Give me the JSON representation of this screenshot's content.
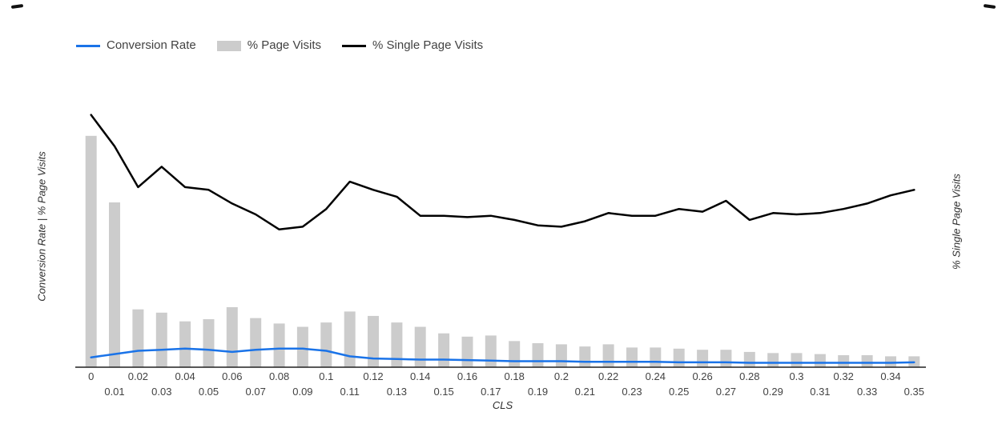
{
  "chart_data": {
    "type": "combo",
    "title": "",
    "xlabel": "CLS",
    "ylabel_left": "Conversion Rate | % Page Visits",
    "ylabel_right": "% Single Page Visits",
    "grid": false,
    "legend_position": "top-left",
    "ylim_left": [
      0,
      25
    ],
    "ylim_right": [
      0,
      100
    ],
    "axis_color": "#212121",
    "tick_label_color": "#424242",
    "categories": [
      "0",
      "0.01",
      "0.02",
      "0.03",
      "0.04",
      "0.05",
      "0.06",
      "0.07",
      "0.08",
      "0.09",
      "0.1",
      "0.11",
      "0.12",
      "0.13",
      "0.14",
      "0.15",
      "0.16",
      "0.17",
      "0.18",
      "0.19",
      "0.2",
      "0.21",
      "0.22",
      "0.23",
      "0.24",
      "0.25",
      "0.26",
      "0.27",
      "0.28",
      "0.29",
      "0.3",
      "0.31",
      "0.32",
      "0.33",
      "0.34",
      "0.35"
    ],
    "series": [
      {
        "name": "Conversion Rate",
        "type": "line",
        "axis": "left",
        "color": "#1a73e8",
        "values": [
          0.9,
          1.2,
          1.5,
          1.6,
          1.7,
          1.6,
          1.4,
          1.6,
          1.7,
          1.7,
          1.5,
          1.0,
          0.8,
          0.75,
          0.7,
          0.7,
          0.65,
          0.6,
          0.55,
          0.55,
          0.55,
          0.5,
          0.5,
          0.5,
          0.5,
          0.45,
          0.45,
          0.45,
          0.4,
          0.4,
          0.4,
          0.4,
          0.4,
          0.4,
          0.4,
          0.45
        ]
      },
      {
        "name": "% Page Visits",
        "type": "bar",
        "axis": "left",
        "color": "#cccccc",
        "values": [
          21.2,
          15.1,
          5.3,
          5.0,
          4.2,
          4.4,
          5.5,
          4.5,
          4.0,
          3.7,
          4.1,
          5.1,
          4.7,
          4.1,
          3.7,
          3.1,
          2.8,
          2.9,
          2.4,
          2.2,
          2.1,
          1.9,
          2.1,
          1.8,
          1.8,
          1.7,
          1.6,
          1.6,
          1.4,
          1.3,
          1.3,
          1.2,
          1.1,
          1.1,
          1.0,
          1.0
        ]
      },
      {
        "name": "% Single Page Visits",
        "type": "line",
        "axis": "right",
        "color": "#000000",
        "values": [
          92.5,
          81,
          66,
          73.5,
          66,
          65,
          60,
          56,
          50.5,
          51.5,
          58,
          68,
          65,
          62.5,
          55.5,
          55.5,
          55,
          55.5,
          54,
          52,
          51.5,
          53.5,
          56.5,
          55.5,
          55.5,
          58,
          57,
          61,
          54,
          56.5,
          56,
          56.5,
          58,
          60,
          63,
          65
        ]
      }
    ]
  }
}
